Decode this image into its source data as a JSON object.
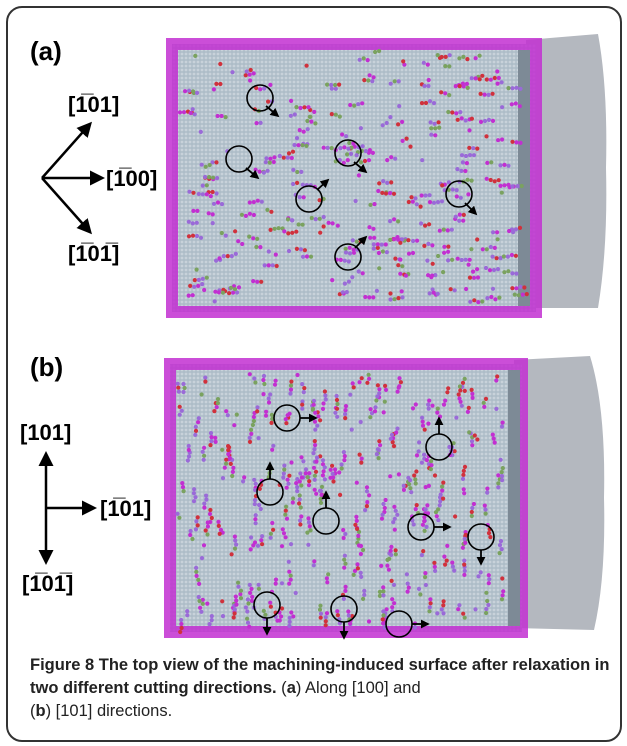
{
  "panels": [
    {
      "label": "(a)",
      "directions": {
        "up": "[",
        "up_bar": "1",
        "up_rest": "01]",
        "right_pre": "[",
        "right_bar": "1",
        "right_rest": "00]",
        "down_pre": "[",
        "down_bar1": "1",
        "down_mid": "0",
        "down_bar2": "1",
        "down_end": "]"
      },
      "axis_texts": [
        "[̅1̅01]"
      ]
    },
    {
      "label": "(b)",
      "directions": {
        "up": "[101]",
        "right_pre": "[",
        "right_bar": "1",
        "right_rest": "01]",
        "down_pre": "[",
        "down_bar1": "1",
        "down_mid": "0",
        "down_bar2": "1",
        "down_end": "]"
      }
    }
  ],
  "caption": {
    "title": "Figure 8 The top view of the machining-induced surface after relaxation in two different cutting directions.",
    "part1_pre": " (",
    "a": "a",
    "part1_post": ") Along [100] and",
    "part2_pre": "(",
    "b": "b",
    "part2_post": ") [101] directions."
  },
  "colors": {
    "surface": "#b9c6d0",
    "atom_magenta": "#c22fd1",
    "atom_violet": "#9a6ad8",
    "atom_red": "#d0313c",
    "atom_green": "#7aa25f"
  }
}
